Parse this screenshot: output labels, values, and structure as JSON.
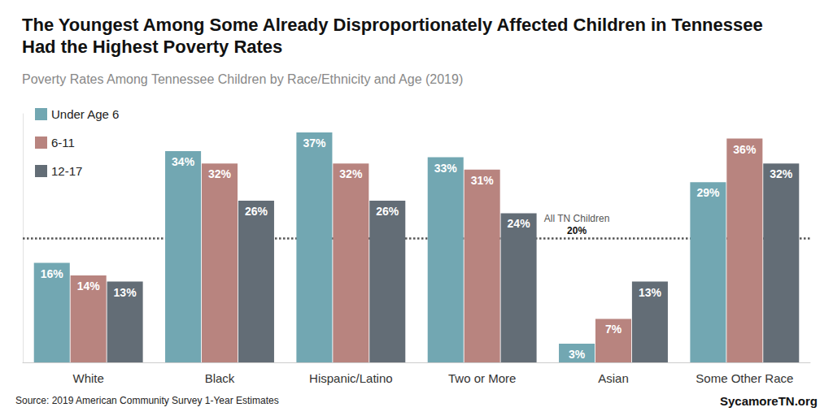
{
  "chart_data": {
    "type": "bar",
    "title": "The Youngest Among Some Already Disproportionately Affected Children in Tennessee Had the Highest Poverty Rates",
    "subtitle": "Poverty Rates Among Tennessee Children by Race/Ethnicity and Age (2019)",
    "categories": [
      "White",
      "Black",
      "Hispanic/Latino",
      "Two or More",
      "Asian",
      "Some Other Race"
    ],
    "series": [
      {
        "name": "Under Age 6",
        "color": "#72a7b2",
        "values": [
          16,
          34,
          37,
          33,
          3,
          29
        ],
        "value_labels": [
          "16%",
          "34%",
          "37%",
          "33%",
          "3%",
          "29%"
        ]
      },
      {
        "name": "6-11",
        "color": "#b8847f",
        "values": [
          14,
          32,
          32,
          31,
          7,
          36
        ],
        "value_labels": [
          "14%",
          "32%",
          "32%",
          "31%",
          "7%",
          "36%"
        ]
      },
      {
        "name": "12-17",
        "color": "#636d76",
        "values": [
          13,
          26,
          26,
          24,
          13,
          32
        ],
        "value_labels": [
          "13%",
          "26%",
          "26%",
          "24%",
          "13%",
          "32%"
        ]
      }
    ],
    "ylim": [
      0,
      40
    ],
    "grid": false,
    "legend": "top-left",
    "data_labels": true,
    "tick_labels": "x",
    "reference_line": {
      "value": 20,
      "label": "All TN Children",
      "value_label": "20%",
      "category": "Asian",
      "line_style": "dotted"
    },
    "source": "Source: 2019 American Community Survey 1-Year Estimates",
    "credit": "SycamoreTN.org"
  }
}
